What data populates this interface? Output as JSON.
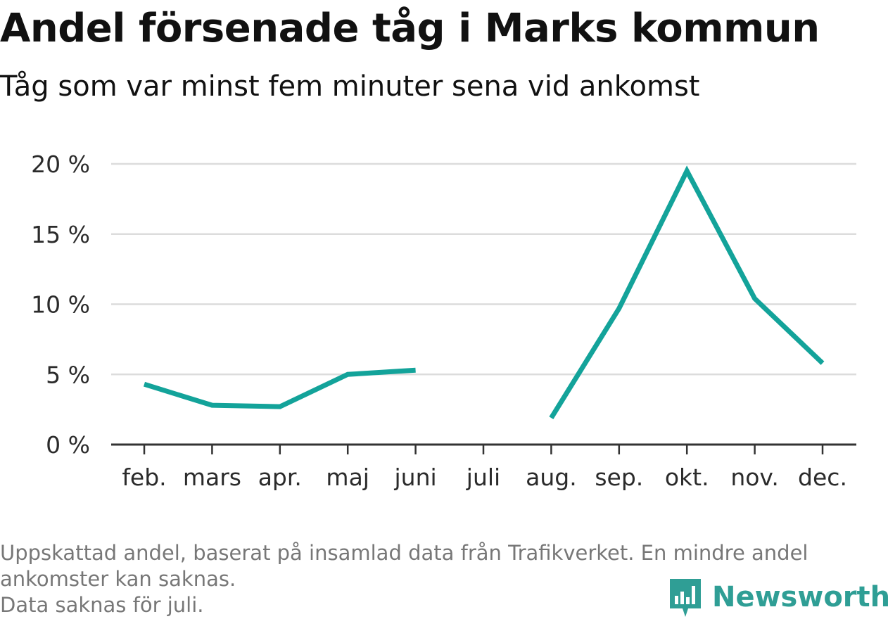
{
  "chart_data": {
    "type": "line",
    "title": "Andel försenade tåg i Marks kommun",
    "subtitle": "Tåg som var minst fem minuter sena vid ankomst",
    "categories": [
      "feb.",
      "mars",
      "apr.",
      "maj",
      "juni",
      "juli",
      "aug.",
      "sep.",
      "okt.",
      "nov.",
      "dec."
    ],
    "series": [
      {
        "values": [
          4.3,
          2.8,
          2.7,
          5.0,
          5.3,
          null,
          1.9,
          9.7,
          19.5,
          10.4,
          5.8
        ],
        "color": "#13a39a"
      }
    ],
    "y_ticks": [
      {
        "value": 0,
        "label": "0 %"
      },
      {
        "value": 5,
        "label": "5 %"
      },
      {
        "value": 10,
        "label": "10 %"
      },
      {
        "value": 15,
        "label": "15 %"
      },
      {
        "value": 20,
        "label": "20 %"
      }
    ],
    "ylim": [
      0,
      20
    ],
    "grid": true,
    "legend": "none",
    "xlabel": "",
    "ylabel": ""
  },
  "footnote": {
    "line1": "Uppskattad andel, baserat på insamlad data från Trafikverket. En mindre andel",
    "line2": "ankomster kan saknas.",
    "line3": "Data saknas för juli."
  },
  "brand": {
    "name": "Newsworthy",
    "logo_icon": "newsworthy-logo-icon",
    "color": "#2f9e95"
  },
  "colors": {
    "line": "#13a39a",
    "grid": "#dcdcdc",
    "axis": "#333333",
    "footnote": "#777777"
  }
}
